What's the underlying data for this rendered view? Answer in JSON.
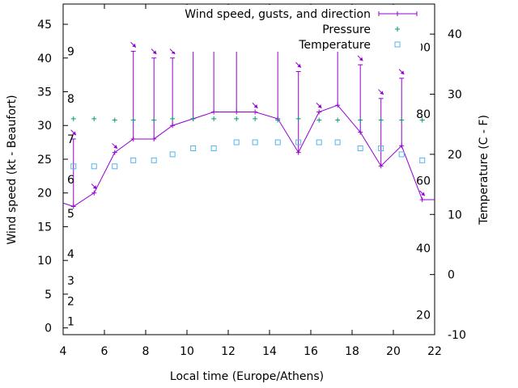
{
  "chart_data": {
    "type": "line",
    "title": "",
    "xlabel": "Local time (Europe/Athens)",
    "ylabel": "Wind speed (kt - Beaufort)",
    "y2label": "Temperature (C - F)",
    "xlim": [
      4,
      22
    ],
    "ylim": [
      -1,
      48
    ],
    "y2lim": [
      -10,
      45
    ],
    "x_ticks": [
      4,
      6,
      8,
      10,
      12,
      14,
      16,
      18,
      20,
      22
    ],
    "y_ticks": [
      0,
      5,
      10,
      15,
      20,
      25,
      30,
      35,
      40,
      45
    ],
    "y2_ticks": [
      -10,
      0,
      10,
      20,
      30,
      40
    ],
    "beaufort_labels": [
      {
        "label": "1",
        "kt": 1
      },
      {
        "label": "2",
        "kt": 4
      },
      {
        "label": "3",
        "kt": 7
      },
      {
        "label": "4",
        "kt": 11
      },
      {
        "label": "5",
        "kt": 17
      },
      {
        "label": "6",
        "kt": 22
      },
      {
        "label": "7",
        "kt": 28
      },
      {
        "label": "8",
        "kt": 34
      },
      {
        "label": "9",
        "kt": 41
      }
    ],
    "fahrenheit_labels": [
      {
        "label": "20",
        "c": -6.7
      },
      {
        "label": "40",
        "c": 4.4
      },
      {
        "label": "60",
        "c": 15.6
      },
      {
        "label": "80",
        "c": 26.7
      },
      {
        "label": "100",
        "c": 37.8
      }
    ],
    "legend": {
      "position": "top-right",
      "entries": [
        "Wind speed, gusts, and direction",
        "Pressure",
        "Temperature"
      ]
    },
    "series": [
      {
        "name": "Wind speed, gusts, and direction",
        "color": "#9400d3",
        "x": [
          3.9,
          4.5,
          5.5,
          6.5,
          7.4,
          8.4,
          9.3,
          10.3,
          11.3,
          12.4,
          13.3,
          14.4,
          15.4,
          16.4,
          17.3,
          18.4,
          19.4,
          20.4,
          21.4,
          22.0
        ],
        "values": [
          18.5,
          18,
          20,
          26,
          28,
          28,
          30,
          31,
          32,
          32,
          32,
          31,
          26,
          32,
          33,
          29,
          24,
          27,
          19,
          19
        ],
        "gusts": [
          null,
          28,
          null,
          null,
          41,
          40,
          40,
          41,
          42,
          42,
          null,
          41,
          38,
          null,
          43,
          39,
          34,
          37,
          null,
          null
        ],
        "direction_deg": [
          null,
          135,
          135,
          135,
          135,
          135,
          135,
          135,
          135,
          135,
          135,
          135,
          135,
          135,
          135,
          135,
          135,
          135,
          135,
          null
        ]
      },
      {
        "name": "Pressure",
        "color": "#009e73",
        "x": [
          4.5,
          5.5,
          6.5,
          7.4,
          8.4,
          9.3,
          10.3,
          11.3,
          12.4,
          13.3,
          14.4,
          15.4,
          16.4,
          17.3,
          18.4,
          19.4,
          20.4,
          21.4
        ],
        "values": [
          31,
          31,
          30.8,
          30.8,
          30.8,
          31,
          31,
          31,
          31,
          31,
          30.8,
          31,
          30.8,
          30.8,
          30.8,
          30.8,
          30.8,
          30.8
        ]
      },
      {
        "name": "Temperature",
        "color": "#56b4e9",
        "x": [
          4.5,
          5.5,
          6.5,
          7.4,
          8.4,
          9.3,
          10.3,
          11.3,
          12.4,
          13.3,
          14.4,
          15.4,
          16.4,
          17.3,
          18.4,
          19.4,
          20.4,
          21.4
        ],
        "values": [
          18,
          18,
          18,
          19,
          19,
          20,
          21,
          21,
          22,
          22,
          22,
          22,
          22,
          22,
          21,
          21,
          20,
          19
        ]
      }
    ]
  }
}
